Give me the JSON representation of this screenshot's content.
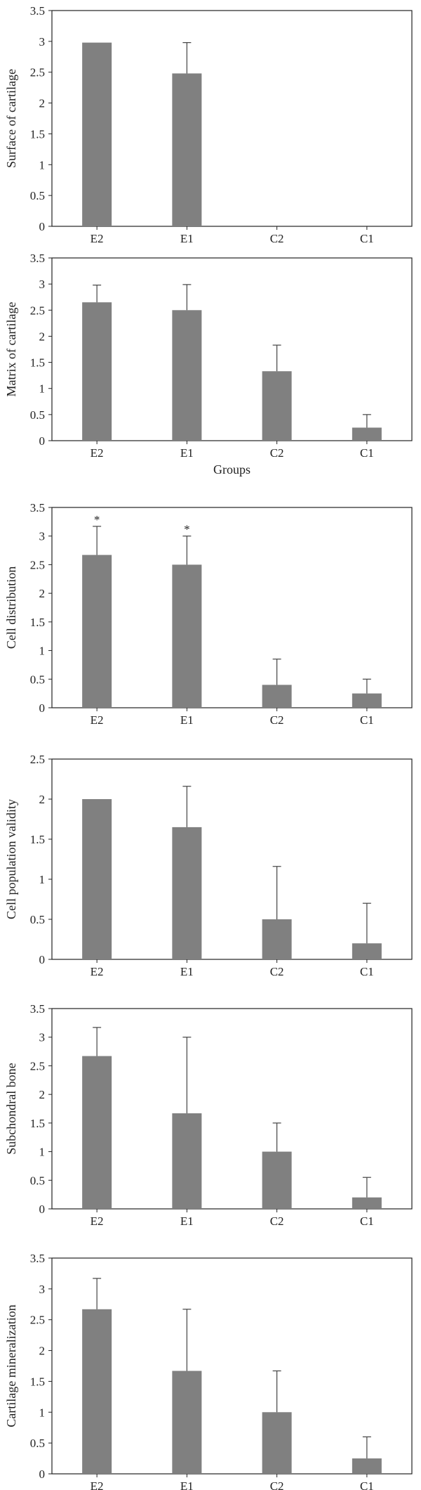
{
  "colors": {
    "bar": "#808080",
    "frame": "#222222",
    "errorbar": "#444444"
  },
  "chart_data": [
    {
      "type": "bar",
      "ylabel": "Surface of cartilage",
      "xlabel": "",
      "categories": [
        "E2",
        "E1",
        "C2",
        "C1"
      ],
      "values": [
        2.98,
        2.48,
        0,
        0
      ],
      "errors": [
        0,
        0.5,
        0,
        0
      ],
      "ylim": [
        0,
        3.5
      ],
      "yticks": [
        "0",
        "0.5",
        "1",
        "1.5",
        "2",
        "2.5",
        "3",
        "3.5"
      ],
      "marks": [
        "",
        "",
        "",
        ""
      ],
      "grid": false
    },
    {
      "type": "bar",
      "ylabel": "Matrix of cartilage",
      "xlabel": "Groups",
      "categories": [
        "E2",
        "E1",
        "C2",
        "C1"
      ],
      "values": [
        2.65,
        2.5,
        1.33,
        0.25
      ],
      "errors": [
        0.33,
        0.49,
        0.5,
        0.25
      ],
      "ylim": [
        0,
        3.5
      ],
      "yticks": [
        "0",
        "0.5",
        "1",
        "1.5",
        "2",
        "2.5",
        "3",
        "3.5"
      ],
      "marks": [
        "",
        "",
        "",
        ""
      ],
      "grid": false
    },
    {
      "type": "bar",
      "ylabel": "Cell distribution",
      "xlabel": "",
      "categories": [
        "E2",
        "E1",
        "C2",
        "C1"
      ],
      "values": [
        2.67,
        2.5,
        0.4,
        0.25
      ],
      "errors": [
        0.5,
        0.5,
        0.45,
        0.25
      ],
      "ylim": [
        0,
        3.5
      ],
      "yticks": [
        "0",
        "0.5",
        "1",
        "1.5",
        "2",
        "2.5",
        "3",
        "3.5"
      ],
      "marks": [
        "*",
        "*",
        "",
        ""
      ],
      "grid": false
    },
    {
      "type": "bar",
      "ylabel": "Cell population validity",
      "xlabel": "",
      "categories": [
        "E2",
        "E1",
        "C2",
        "C1"
      ],
      "values": [
        2.0,
        1.65,
        0.5,
        0.2
      ],
      "errors": [
        0,
        0.51,
        0.66,
        0.5
      ],
      "ylim": [
        0,
        2.5
      ],
      "yticks": [
        "0",
        "0.5",
        "1",
        "1.5",
        "2",
        "2.5"
      ],
      "marks": [
        "",
        "",
        "",
        ""
      ],
      "grid": false
    },
    {
      "type": "bar",
      "ylabel": "Subchondral bone",
      "xlabel": "",
      "categories": [
        "E2",
        "E1",
        "C2",
        "C1"
      ],
      "values": [
        2.67,
        1.67,
        1.0,
        0.2
      ],
      "errors": [
        0.5,
        1.33,
        0.5,
        0.35
      ],
      "ylim": [
        0,
        3.5
      ],
      "yticks": [
        "0",
        "0.5",
        "1",
        "1.5",
        "2",
        "2.5",
        "3",
        "3.5"
      ],
      "marks": [
        "",
        "",
        "",
        ""
      ],
      "grid": false
    },
    {
      "type": "bar",
      "ylabel": "Cartilage mineralization",
      "xlabel": "",
      "categories": [
        "E2",
        "E1",
        "C2",
        "C1"
      ],
      "values": [
        2.67,
        1.67,
        1.0,
        0.25
      ],
      "errors": [
        0.5,
        1.0,
        0.67,
        0.35
      ],
      "ylim": [
        0,
        3.5
      ],
      "yticks": [
        "0",
        "0.5",
        "1",
        "1.5",
        "2",
        "2.5",
        "3",
        "3.5"
      ],
      "marks": [
        "",
        "",
        "",
        ""
      ],
      "grid": false
    }
  ]
}
